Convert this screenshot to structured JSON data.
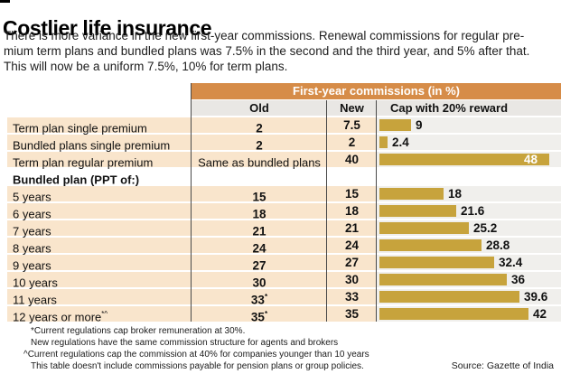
{
  "page": {
    "title": "Costlier life insurance",
    "subtitle_lines": [
      "There is more variance in the new first-year commissions. Renewal commissions for regular pre-",
      "mium term plans and bundled plans was 7.5% in the second and the third year, and 5% after that.",
      "This will now be a uniform 7.5%, 10% for term plans."
    ],
    "source": "Source: Gazette of India"
  },
  "table": {
    "group_header": "First-year commissions (in %)",
    "columns": [
      "Old",
      "New",
      "Cap with 20% reward"
    ],
    "bar_axis_max": 48,
    "rows": [
      {
        "label": "Term plan single premium",
        "old": "2",
        "new": "7.5",
        "bar": 9,
        "bar_label": "9"
      },
      {
        "label": "Bundled plans single premium",
        "old": "2",
        "new": "2",
        "bar": 2.4,
        "bar_label": "2.4"
      },
      {
        "label": "Term plan regular premium",
        "old": "Same as bundled plans",
        "old_text": true,
        "new": "40",
        "bar": 48,
        "bar_label": "48",
        "label_inside": true
      },
      {
        "label": "Bundled plan (PPT of:)",
        "section": true
      },
      {
        "label": "5 years",
        "old": "15",
        "new": "15",
        "bar": 18,
        "bar_label": "18"
      },
      {
        "label": "6 years",
        "old": "18",
        "new": "18",
        "bar": 21.6,
        "bar_label": "21.6"
      },
      {
        "label": "7 years",
        "old": "21",
        "new": "21",
        "bar": 25.2,
        "bar_label": "25.2"
      },
      {
        "label": "8 years",
        "old": "24",
        "new": "24",
        "bar": 28.8,
        "bar_label": "28.8"
      },
      {
        "label": "9 years",
        "old": "27",
        "new": "27",
        "bar": 32.4,
        "bar_label": "32.4"
      },
      {
        "label": "10 years",
        "old": "30",
        "new": "30",
        "bar": 36,
        "bar_label": "36"
      },
      {
        "label": "11 years",
        "old": "33",
        "old_sup": "*",
        "new": "33",
        "bar": 39.6,
        "bar_label": "39.6"
      },
      {
        "label": "12 years or more",
        "label_sup": "*^",
        "old": "35",
        "old_sup": "*",
        "new": "35",
        "bar": 42,
        "bar_label": "42"
      }
    ]
  },
  "footnotes": [
    "*Current regulations cap broker remuneration at 30%.",
    "New regulations have the same commission structure for agents and brokers",
    "^Current regulations cap the commission at 40% for companies younger than 10 years",
    "This table doesn't include commissions payable for pension plans or group policies."
  ],
  "colors": {
    "header_orange": "#d68c48",
    "row_peach": "#f9e5cc",
    "bar_gold": "#c7a33c",
    "subheader_gray": "#e9e7e4",
    "bar_track_gray": "#f0efec",
    "rule_gray": "#4a4a4a"
  },
  "chart_data": {
    "type": "bar",
    "orientation": "horizontal",
    "title": "First-year commissions (in %)",
    "group_label": "Bundled plan (PPT of:)",
    "categories": [
      "Term plan single premium",
      "Bundled plans single premium",
      "Term plan regular premium",
      "5 years",
      "6 years",
      "7 years",
      "8 years",
      "9 years",
      "10 years",
      "11 years",
      "12 years or more"
    ],
    "series": [
      {
        "name": "Old",
        "values": [
          2,
          2,
          "Same as bundled plans",
          15,
          18,
          21,
          24,
          27,
          30,
          33,
          35
        ]
      },
      {
        "name": "New",
        "values": [
          7.5,
          2,
          40,
          15,
          18,
          21,
          24,
          27,
          30,
          33,
          35
        ]
      },
      {
        "name": "Cap with 20% reward",
        "values": [
          9,
          2.4,
          48,
          18,
          21.6,
          25.2,
          28.8,
          32.4,
          36,
          39.6,
          42
        ]
      }
    ],
    "xlim": [
      0,
      48
    ],
    "grid": false,
    "legend_position": "none",
    "value_labels": true
  }
}
